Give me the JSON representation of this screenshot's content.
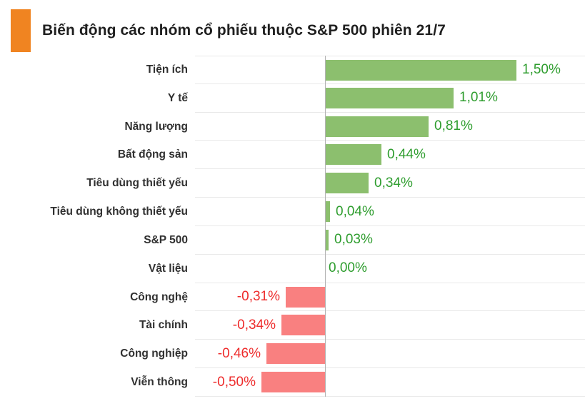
{
  "chart_data": {
    "type": "bar",
    "orientation": "horizontal",
    "title": "Biến động các nhóm cổ phiếu thuộc S&P 500 phiên 21/7",
    "categories": [
      "Tiện ích",
      "Y tế",
      "Năng lượng",
      "Bất động sản",
      "Tiêu dùng thiết yếu",
      "Tiêu dùng không thiết yếu",
      "S&P 500",
      "Vật liệu",
      "Công nghệ",
      "Tài chính",
      "Công nghiệp",
      "Viễn thông"
    ],
    "values": [
      1.5,
      1.01,
      0.81,
      0.44,
      0.34,
      0.04,
      0.03,
      0.0,
      -0.31,
      -0.34,
      -0.46,
      -0.5
    ],
    "value_labels": [
      "1,50%",
      "1,01%",
      "0,81%",
      "0,44%",
      "0,34%",
      "0,04%",
      "0,03%",
      "0,00%",
      "-0,31%",
      "-0,34%",
      "-0,46%",
      "-0,50%"
    ],
    "unit": "%",
    "xlim": [
      -1.02,
      2.04
    ],
    "grid": "row-separators-plot-area-only",
    "legend": "none"
  },
  "colors": {
    "positive_bar": "#8CBF6E",
    "negative_bar": "#F98080",
    "positive_label": "#2E9D2E",
    "negative_label": "#EE2C2C",
    "accent_orange": "#F08421",
    "title_text": "#1F1F1F",
    "category_text": "#303030",
    "gridline": "#E9E9E9",
    "axis_line": "#B3B3B3"
  }
}
